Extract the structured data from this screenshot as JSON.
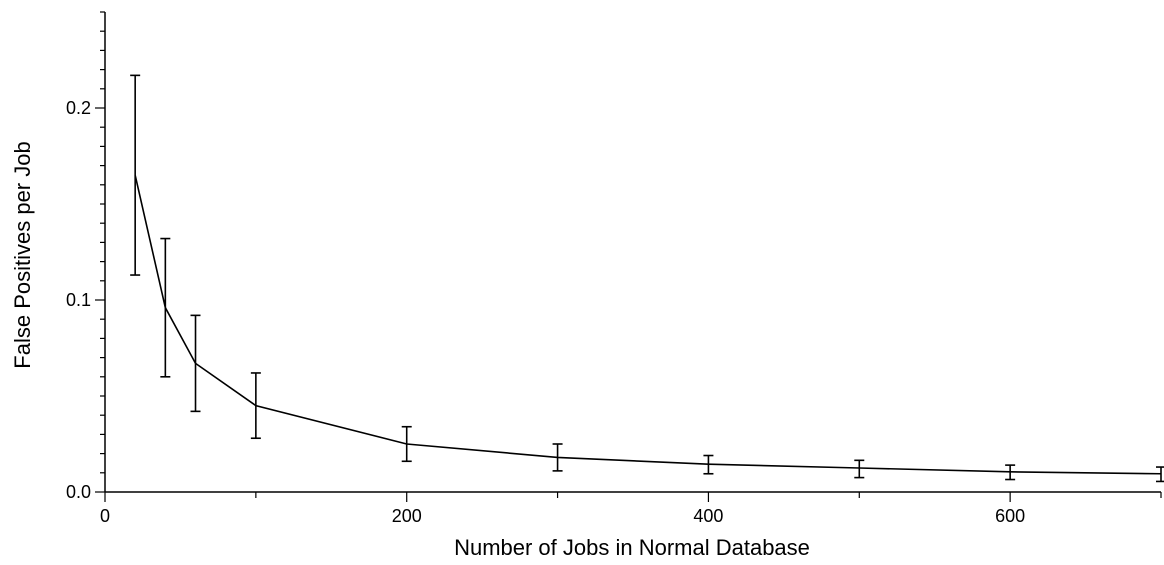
{
  "chart_data": {
    "type": "line",
    "title": "",
    "xlabel": "Number of Jobs in Normal Database",
    "ylabel": "False Positives per Job",
    "xlim": [
      0,
      700
    ],
    "ylim": [
      0,
      0.25
    ],
    "x_ticks": [
      0,
      200,
      400,
      600
    ],
    "x_tick_labels": [
      "0",
      "200",
      "400",
      "600"
    ],
    "y_ticks": [
      0.0,
      0.1,
      0.2
    ],
    "y_tick_labels": [
      "0.0",
      "0.1",
      "0.2"
    ],
    "grid": false,
    "legend": "none",
    "series": [
      {
        "x": [
          20,
          40,
          60,
          100,
          200,
          300,
          400,
          500,
          600,
          700
        ],
        "y": [
          0.165,
          0.096,
          0.067,
          0.045,
          0.025,
          0.018,
          0.0145,
          0.0125,
          0.0105,
          0.0095
        ],
        "y_err_low": [
          0.113,
          0.06,
          0.042,
          0.028,
          0.016,
          0.011,
          0.0095,
          0.0075,
          0.0065,
          0.0055
        ],
        "y_err_high": [
          0.217,
          0.132,
          0.092,
          0.062,
          0.034,
          0.025,
          0.019,
          0.0165,
          0.014,
          0.013
        ],
        "color": "#000000"
      }
    ]
  }
}
